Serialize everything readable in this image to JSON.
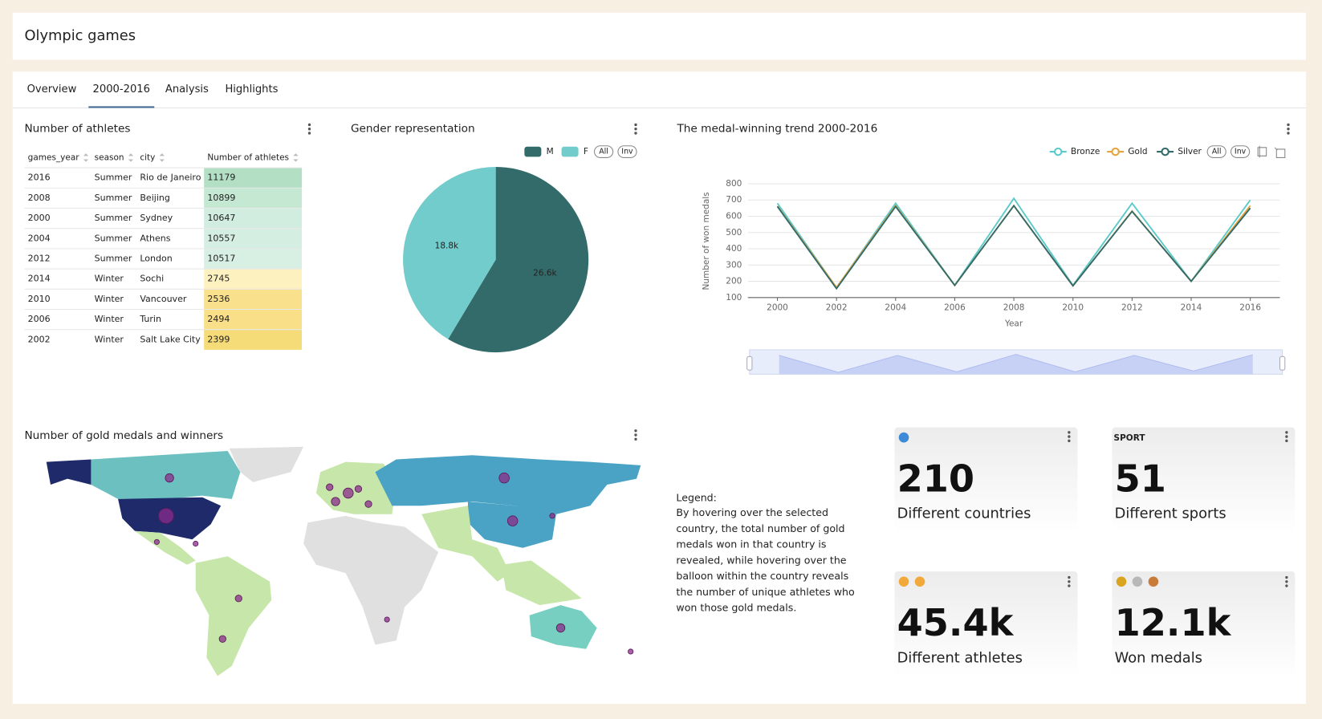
{
  "header": {
    "title": "Olympic games"
  },
  "tabs": {
    "items": [
      "Overview",
      "2000-2016",
      "Analysis",
      "Highlights"
    ],
    "active": 1
  },
  "legend_buttons": [
    "All",
    "Inv"
  ],
  "athletes_table": {
    "title": "Number of athletes",
    "columns": [
      "games_year",
      "season",
      "city",
      "Number of athletes"
    ],
    "rows": [
      [
        2016,
        "Summer",
        "Rio de Janeiro",
        11179
      ],
      [
        2008,
        "Summer",
        "Beijing",
        10899
      ],
      [
        2000,
        "Summer",
        "Sydney",
        10647
      ],
      [
        2004,
        "Summer",
        "Athens",
        10557
      ],
      [
        2012,
        "Summer",
        "London",
        10517
      ],
      [
        2014,
        "Winter",
        "Sochi",
        2745
      ],
      [
        2010,
        "Winter",
        "Vancouver",
        2536
      ],
      [
        2006,
        "Winter",
        "Turin",
        2494
      ],
      [
        2002,
        "Winter",
        "Salt Lake City",
        2399
      ]
    ],
    "colors": [
      "#b3e0c5",
      "#c4e8d2",
      "#d1ede0",
      "#d5eee2",
      "#d8efe4",
      "#fdf1c0",
      "#f8e08c",
      "#f8df88",
      "#f6dc78"
    ]
  },
  "chart_data": [
    {
      "type": "pie",
      "title": "Gender representation",
      "categories": [
        "M",
        "F"
      ],
      "values": [
        26600,
        18800
      ],
      "value_labels": [
        "26.6k",
        "18.8k"
      ],
      "colors": [
        "#336b6b",
        "#72cccc"
      ]
    },
    {
      "type": "line",
      "title": "The medal-winning trend 2000-2016",
      "x_label": "Year",
      "y_label": "Number of won medals",
      "x": [
        2000,
        2002,
        2004,
        2006,
        2008,
        2010,
        2012,
        2014,
        2016
      ],
      "xlim": [
        1999,
        2017
      ],
      "xticks": [
        2000,
        2002,
        2004,
        2006,
        2008,
        2010,
        2012,
        2014,
        2016
      ],
      "ylim": [
        100,
        800
      ],
      "yticks": [
        100,
        200,
        300,
        400,
        500,
        600,
        700,
        800
      ],
      "grid": true,
      "series": [
        {
          "name": "Bronze",
          "color": "#5ccaca",
          "values": [
            680,
            160,
            680,
            175,
            710,
            175,
            680,
            200,
            700
          ]
        },
        {
          "name": "Gold",
          "color": "#e8a33a",
          "values": [
            663,
            162,
            665,
            175,
            665,
            172,
            632,
            200,
            665
          ]
        },
        {
          "name": "Silver",
          "color": "#336b6b",
          "values": [
            660,
            155,
            660,
            175,
            665,
            172,
            630,
            200,
            650
          ]
        }
      ]
    }
  ],
  "map": {
    "title": "Number of gold medals and winners"
  },
  "legend_note": {
    "title": "Legend:",
    "lines": [
      "By hovering over the selected",
      "country, the total number of gold",
      "medals won in that country is",
      "revealed, while hovering over the",
      "balloon within the country reveals",
      "the number of unique athletes who",
      "won those gold medals."
    ]
  },
  "kpis": [
    {
      "value": "210",
      "label": "Different countries"
    },
    {
      "tag": "SPORT",
      "value": "51",
      "label": "Different sports"
    },
    {
      "value": "45.4k",
      "label": "Different athletes"
    },
    {
      "value": "12.1k",
      "label": "Won medals"
    }
  ]
}
